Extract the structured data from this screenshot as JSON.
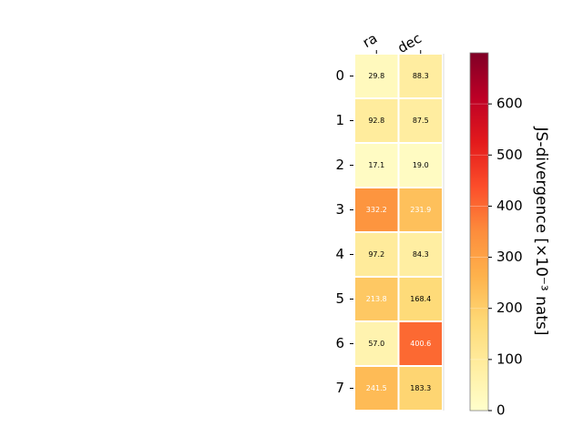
{
  "chart_data": {
    "type": "heatmap",
    "columns": [
      "ra",
      "dec"
    ],
    "rows": [
      "0",
      "1",
      "2",
      "3",
      "4",
      "5",
      "6",
      "7"
    ],
    "values": [
      [
        29.8,
        88.3
      ],
      [
        92.8,
        87.5
      ],
      [
        17.1,
        19.0
      ],
      [
        332.2,
        231.9
      ],
      [
        97.2,
        84.3
      ],
      [
        213.8,
        168.4
      ],
      [
        57.0,
        400.6
      ],
      [
        241.5,
        183.3
      ]
    ],
    "cell_labels": [
      [
        "29.8",
        "88.3"
      ],
      [
        "92.8",
        "87.5"
      ],
      [
        "17.1",
        "19.0"
      ],
      [
        "332.2",
        "231.9"
      ],
      [
        "97.2",
        "84.3"
      ],
      [
        "213.8",
        "168.4"
      ],
      [
        "57.0",
        "400.6"
      ],
      [
        "241.5",
        "183.3"
      ]
    ],
    "colorbar": {
      "label": "JS-divergence [×10⁻³ nats]",
      "range": [
        0,
        700
      ],
      "ticks": [
        "0",
        "100",
        "200",
        "300",
        "400",
        "500",
        "600"
      ],
      "colormap": "YlOrRd"
    }
  }
}
